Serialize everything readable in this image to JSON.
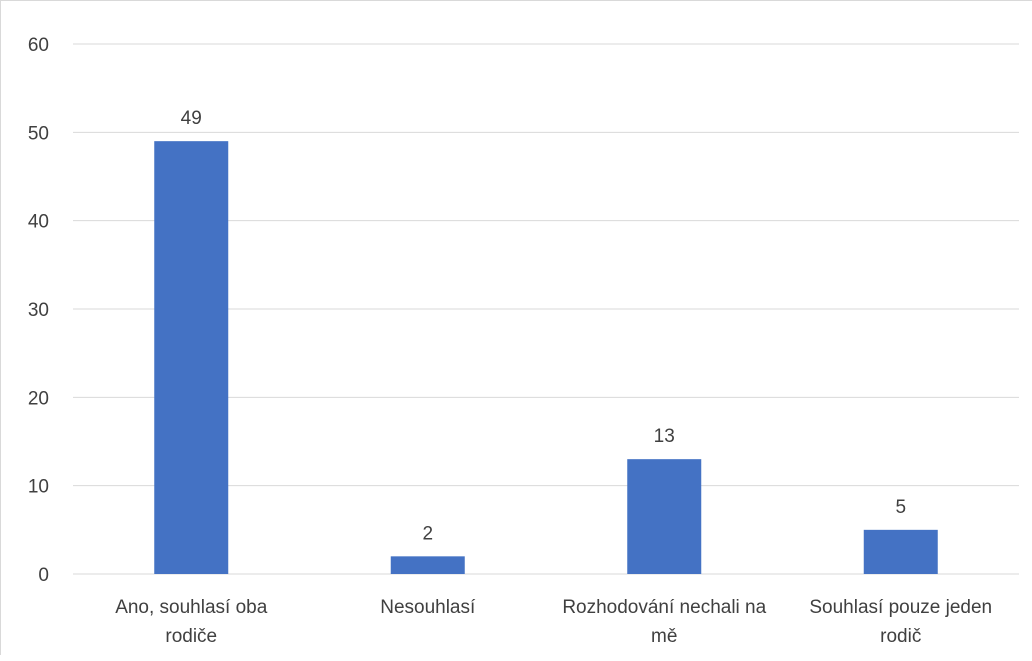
{
  "chart_data": {
    "type": "bar",
    "categories": [
      [
        "Ano, souhlasí oba",
        "rodiče"
      ],
      [
        "Nesouhlasí"
      ],
      [
        "Rozhodování nechali na",
        "mě"
      ],
      [
        "Souhlasí pouze jeden",
        "rodič"
      ]
    ],
    "values": [
      49,
      2,
      13,
      5
    ],
    "data_labels": [
      "49",
      "2",
      "13",
      "5"
    ],
    "y_ticks": [
      "0",
      "10",
      "20",
      "30",
      "40",
      "50",
      "60"
    ],
    "ylim": [
      0,
      60
    ],
    "grid": true,
    "legend": "none",
    "colors": {
      "bar": "#4472c4",
      "grid": "#d9d9d9",
      "text": "#404040"
    }
  }
}
